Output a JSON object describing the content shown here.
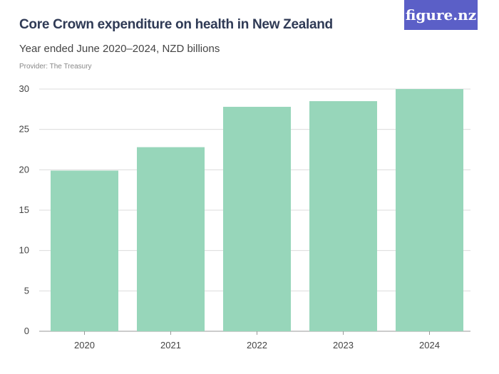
{
  "header": {
    "title": "Core Crown expenditure on health in New Zealand",
    "subtitle": "Year ended June 2020–2024, NZD billions",
    "provider": "Provider: The Treasury",
    "logo": "figure.nz",
    "logo_color": "#5b5fc7"
  },
  "chart_data": {
    "type": "bar",
    "title": "Core Crown expenditure on health in New Zealand",
    "subtitle": "Year ended June 2020–2024, NZD billions",
    "categories": [
      "2020",
      "2021",
      "2022",
      "2023",
      "2024"
    ],
    "values": [
      19.9,
      22.8,
      27.8,
      28.5,
      30.0
    ],
    "ylim": [
      0,
      30
    ],
    "yticks": [
      0,
      5,
      10,
      15,
      20,
      25,
      30
    ],
    "grid": true,
    "bar_color": "#97d6ba"
  }
}
